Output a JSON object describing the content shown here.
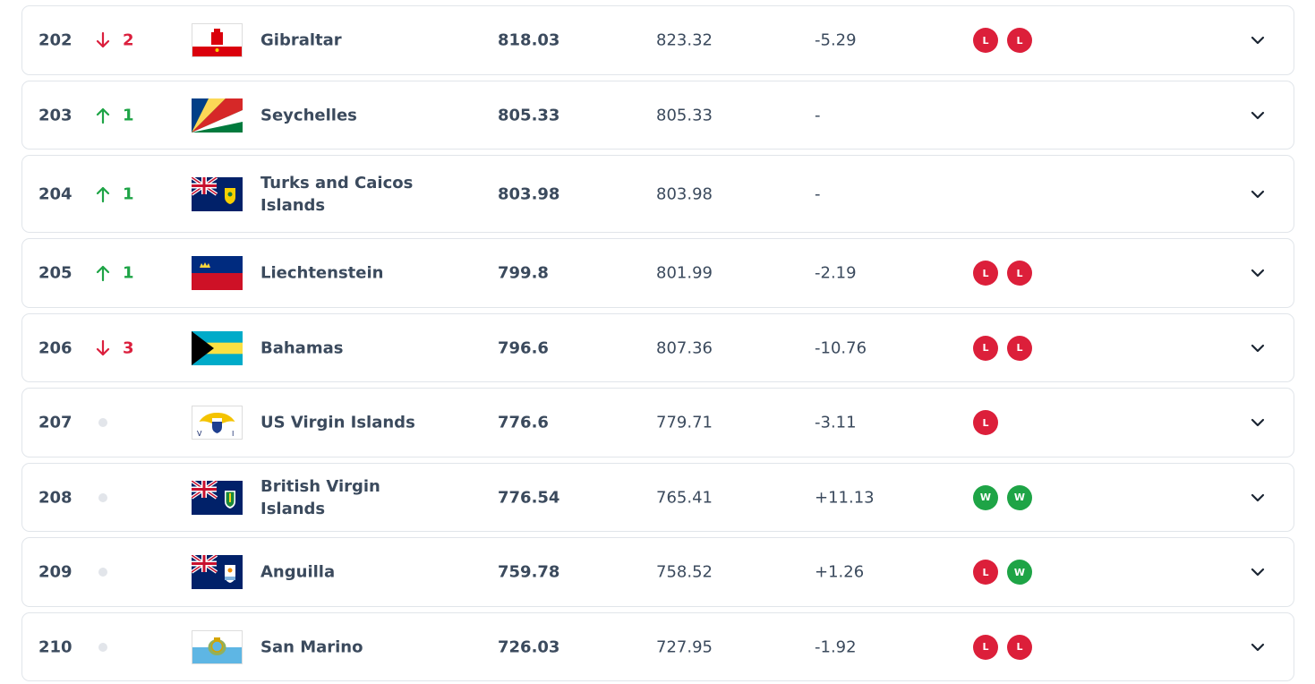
{
  "table": {
    "rows": [
      {
        "rank": 202,
        "trend": "down",
        "move": 2,
        "name": "Gibraltar",
        "points": 818.03,
        "previous": 823.32,
        "change": "-5.29",
        "form": [
          {
            "result": "L",
            "color": "#dc1f3a"
          },
          {
            "result": "L",
            "color": "#dc1f3a"
          }
        ]
      },
      {
        "rank": 203,
        "trend": "up",
        "move": 1,
        "name": "Seychelles",
        "points": 805.33,
        "previous": 805.33,
        "change": "-",
        "form": []
      },
      {
        "rank": 204,
        "trend": "up",
        "move": 1,
        "name": "Turks and Caicos Islands",
        "points": 803.98,
        "previous": 803.98,
        "change": "-",
        "form": []
      },
      {
        "rank": 205,
        "trend": "up",
        "move": 1,
        "name": "Liechtenstein",
        "points": 799.8,
        "previous": 801.99,
        "change": "-2.19",
        "form": [
          {
            "result": "L",
            "color": "#dc1f3a"
          },
          {
            "result": "L",
            "color": "#dc1f3a"
          }
        ]
      },
      {
        "rank": 206,
        "trend": "down",
        "move": 3,
        "name": "Bahamas",
        "points": 796.6,
        "previous": 807.36,
        "change": "-10.76",
        "form": [
          {
            "result": "L",
            "color": "#dc1f3a"
          },
          {
            "result": "L",
            "color": "#dc1f3a"
          }
        ]
      },
      {
        "rank": 207,
        "trend": "none",
        "name": "US Virgin Islands",
        "points": 776.6,
        "previous": 779.71,
        "change": "-3.11",
        "form": [
          {
            "result": "L",
            "color": "#dc1f3a"
          }
        ]
      },
      {
        "rank": 208,
        "trend": "none",
        "name": "British Virgin Islands",
        "points": 776.54,
        "previous": 765.41,
        "change": "+11.13",
        "form": [
          {
            "result": "W",
            "color": "#1ea446"
          },
          {
            "result": "W",
            "color": "#1ea446"
          }
        ]
      },
      {
        "rank": 209,
        "trend": "none",
        "name": "Anguilla",
        "points": 759.78,
        "previous": 758.52,
        "change": "+1.26",
        "form": [
          {
            "result": "L",
            "color": "#dc1f3a"
          },
          {
            "result": "W",
            "color": "#1ea446"
          }
        ]
      },
      {
        "rank": 210,
        "trend": "none",
        "name": "San Marino",
        "points": 726.03,
        "previous": 727.95,
        "change": "-1.92",
        "form": [
          {
            "result": "L",
            "color": "#dc1f3a"
          },
          {
            "result": "L",
            "color": "#dc1f3a"
          }
        ]
      }
    ]
  }
}
